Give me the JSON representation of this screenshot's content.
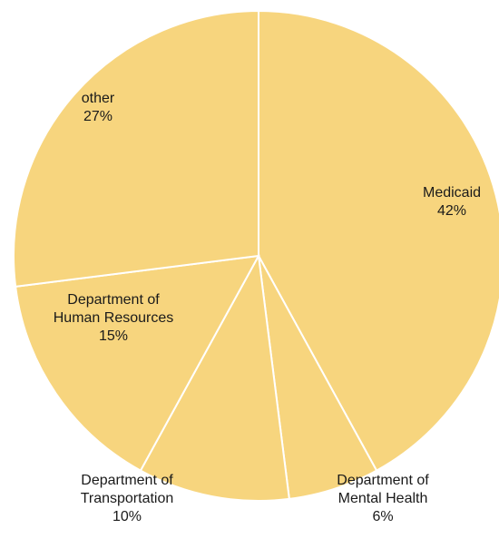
{
  "chart_data": {
    "type": "pie",
    "colors": {
      "slice_fill": "#F7D57E",
      "slice_stroke": "#ffffff",
      "label_text": "#1a1a1a"
    },
    "slices": [
      {
        "label_lines": [
          "Medicaid",
          "42%"
        ],
        "value": 42
      },
      {
        "label_lines": [
          "Department of",
          "Mental Health",
          "6%"
        ],
        "value": 6
      },
      {
        "label_lines": [
          "Department of",
          "Transportation",
          "10%"
        ],
        "value": 10
      },
      {
        "label_lines": [
          "Department of",
          "Human Resources",
          "15%"
        ],
        "value": 15
      },
      {
        "label_lines": [
          "other",
          "27%"
        ],
        "value": 27
      }
    ]
  }
}
